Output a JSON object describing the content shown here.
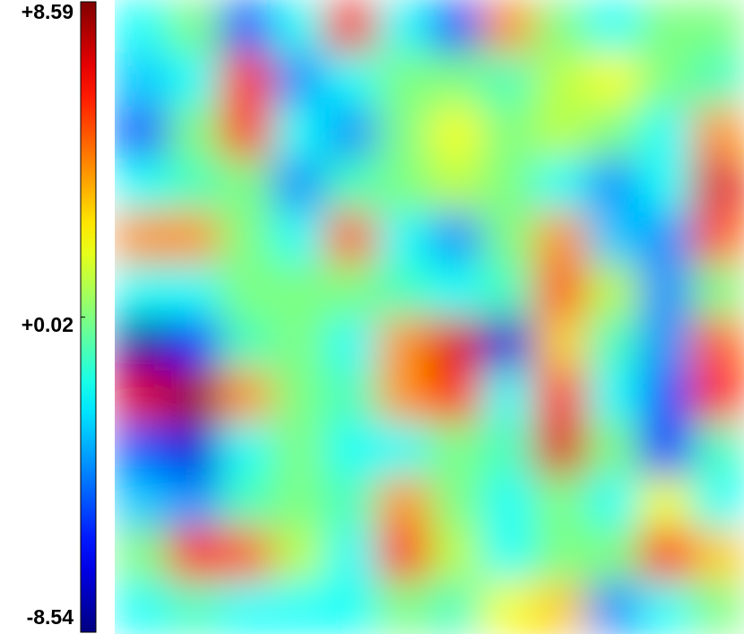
{
  "chart_data": {
    "type": "heatmap",
    "colormap": "jet",
    "clim": [
      -8.54,
      8.59
    ],
    "cticks": [
      {
        "value": 8.59,
        "label": "+8.59"
      },
      {
        "value": 0.02,
        "label": "+0.02"
      },
      -8.54
    ],
    "z": [
      [
        -2,
        0,
        -5,
        -2,
        6.5,
        -2,
        -5,
        4,
        0,
        -2,
        0,
        0
      ],
      [
        -3,
        -2,
        6,
        -4,
        -2,
        0,
        0,
        -1,
        1,
        2,
        0,
        -1
      ],
      [
        -5,
        0,
        6,
        -2,
        -4,
        0,
        2,
        0,
        1,
        0,
        -2,
        4
      ],
      [
        -2,
        -1,
        0,
        -4,
        -1,
        0,
        1,
        0,
        -2,
        -4,
        -2,
        7
      ],
      [
        4,
        4,
        0,
        -2,
        5,
        -2,
        -4,
        0,
        4,
        -3,
        -4,
        5
      ],
      [
        -2,
        -2,
        0,
        0,
        0,
        -1,
        -2,
        -1,
        5,
        1,
        -4,
        0
      ],
      [
        -8,
        -6,
        -1,
        0,
        -2,
        4,
        7,
        -7,
        3,
        -1,
        -4,
        5
      ],
      [
        7,
        8,
        4,
        0,
        -1,
        4,
        6,
        -2,
        6,
        -2,
        -5,
        6
      ],
      [
        -5,
        -7,
        -2,
        0,
        -2,
        -2,
        0,
        -1,
        7,
        0,
        -6,
        -1
      ],
      [
        -3,
        -4,
        -1,
        0,
        -1,
        4,
        0,
        -2,
        0,
        -2,
        2,
        -2
      ],
      [
        0,
        6,
        5,
        1,
        -2,
        6,
        1,
        -2,
        0,
        0,
        6,
        3
      ],
      [
        -2,
        -1,
        -2,
        -2,
        -2,
        0,
        -1,
        2,
        3,
        -4,
        -2,
        0
      ]
    ]
  }
}
